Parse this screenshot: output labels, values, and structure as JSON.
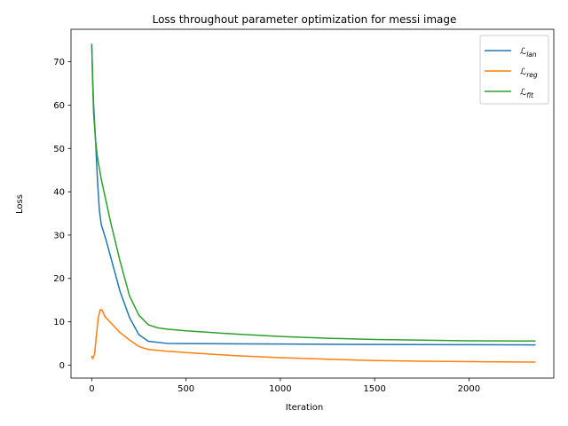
{
  "chart_data": {
    "type": "line",
    "title": "Loss throughout parameter optimization for messi image",
    "xlabel": "Iteration",
    "ylabel": "Loss",
    "xlim": [
      -110,
      2450
    ],
    "ylim": [
      -3.0,
      77.5
    ],
    "xticks": [
      0,
      500,
      1000,
      1500,
      2000
    ],
    "yticks": [
      0,
      10,
      20,
      30,
      40,
      50,
      60,
      70
    ],
    "grid": false,
    "legend_position": "upper right",
    "series": [
      {
        "name_main": "ℒ",
        "name_sub": "lan",
        "color": "#1f77b4",
        "points": [
          [
            0,
            74
          ],
          [
            5,
            66
          ],
          [
            10,
            60
          ],
          [
            20,
            52
          ],
          [
            30,
            43
          ],
          [
            40,
            36
          ],
          [
            50,
            32.5
          ],
          [
            75,
            29
          ],
          [
            100,
            25
          ],
          [
            150,
            17
          ],
          [
            200,
            11
          ],
          [
            250,
            7
          ],
          [
            300,
            5.5
          ],
          [
            400,
            5.0
          ],
          [
            600,
            4.95
          ],
          [
            1000,
            4.85
          ],
          [
            1500,
            4.75
          ],
          [
            2000,
            4.7
          ],
          [
            2350,
            4.65
          ]
        ]
      },
      {
        "name_main": "ℒ",
        "name_sub": "reg",
        "color": "#ff7f0e",
        "points": [
          [
            0,
            2
          ],
          [
            5,
            1.5
          ],
          [
            15,
            2.5
          ],
          [
            25,
            7
          ],
          [
            35,
            11
          ],
          [
            45,
            12.8
          ],
          [
            55,
            12.7
          ],
          [
            70,
            11.2
          ],
          [
            100,
            9.8
          ],
          [
            150,
            7.5
          ],
          [
            200,
            5.8
          ],
          [
            250,
            4.3
          ],
          [
            300,
            3.6
          ],
          [
            400,
            3.2
          ],
          [
            500,
            2.9
          ],
          [
            750,
            2.2
          ],
          [
            1000,
            1.7
          ],
          [
            1250,
            1.35
          ],
          [
            1500,
            1.05
          ],
          [
            1750,
            0.9
          ],
          [
            2000,
            0.8
          ],
          [
            2350,
            0.7
          ]
        ]
      },
      {
        "name_main": "ℒ",
        "name_sub": "fit",
        "color": "#2ca02c",
        "points": [
          [
            0,
            74
          ],
          [
            5,
            65
          ],
          [
            10,
            58
          ],
          [
            20,
            52
          ],
          [
            30,
            48
          ],
          [
            50,
            43
          ],
          [
            75,
            38
          ],
          [
            100,
            33
          ],
          [
            150,
            24
          ],
          [
            200,
            16
          ],
          [
            250,
            11.5
          ],
          [
            300,
            9.3
          ],
          [
            350,
            8.6
          ],
          [
            400,
            8.3
          ],
          [
            500,
            7.9
          ],
          [
            750,
            7.2
          ],
          [
            1000,
            6.6
          ],
          [
            1250,
            6.2
          ],
          [
            1500,
            5.9
          ],
          [
            1750,
            5.75
          ],
          [
            2000,
            5.6
          ],
          [
            2350,
            5.55
          ]
        ]
      }
    ]
  }
}
